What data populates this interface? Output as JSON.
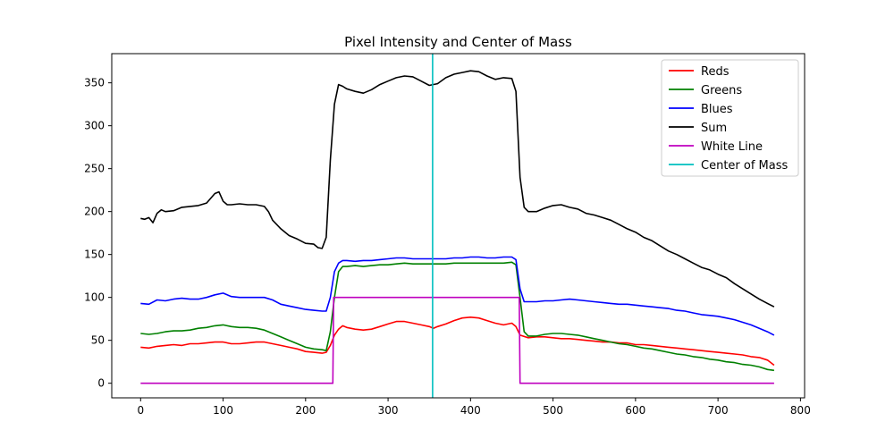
{
  "chart_data": {
    "type": "line",
    "title": "Pixel Intensity and Center of Mass",
    "xlabel": "",
    "ylabel": "",
    "xlim": [
      -35,
      805
    ],
    "ylim": [
      -17,
      384
    ],
    "x_ticks": [
      0,
      100,
      200,
      300,
      400,
      500,
      600,
      700,
      800
    ],
    "y_ticks": [
      0,
      50,
      100,
      150,
      200,
      250,
      300,
      350
    ],
    "grid": false,
    "legend_position": "upper right",
    "series": [
      {
        "name": "Reds",
        "color": "#ff0000",
        "x": [
          0,
          10,
          20,
          30,
          40,
          50,
          60,
          70,
          80,
          90,
          100,
          110,
          120,
          130,
          140,
          150,
          160,
          170,
          180,
          190,
          200,
          210,
          220,
          225,
          230,
          235,
          240,
          245,
          250,
          260,
          270,
          280,
          290,
          300,
          310,
          320,
          330,
          340,
          350,
          355,
          360,
          370,
          380,
          390,
          400,
          410,
          420,
          430,
          440,
          450,
          455,
          460,
          470,
          480,
          490,
          500,
          510,
          520,
          530,
          540,
          550,
          560,
          570,
          580,
          590,
          600,
          610,
          620,
          630,
          640,
          650,
          660,
          670,
          680,
          690,
          700,
          710,
          720,
          730,
          740,
          750,
          760,
          768
        ],
        "y": [
          42,
          41,
          43,
          44,
          45,
          44,
          46,
          46,
          47,
          48,
          48,
          46,
          46,
          47,
          48,
          48,
          46,
          44,
          42,
          40,
          37,
          36,
          35,
          36,
          44,
          56,
          63,
          67,
          65,
          63,
          62,
          63,
          66,
          69,
          72,
          72,
          70,
          68,
          66,
          64,
          66,
          69,
          73,
          76,
          77,
          76,
          73,
          70,
          68,
          70,
          66,
          56,
          53,
          54,
          54,
          53,
          52,
          52,
          51,
          50,
          49,
          48,
          48,
          47,
          47,
          45,
          45,
          44,
          43,
          42,
          41,
          40,
          39,
          38,
          37,
          36,
          35,
          34,
          33,
          31,
          30,
          27,
          21
        ]
      },
      {
        "name": "Greens",
        "color": "#008000",
        "x": [
          0,
          10,
          20,
          30,
          40,
          50,
          60,
          70,
          80,
          90,
          100,
          110,
          120,
          130,
          140,
          150,
          160,
          170,
          180,
          190,
          200,
          210,
          220,
          225,
          230,
          235,
          240,
          245,
          250,
          260,
          270,
          280,
          290,
          300,
          310,
          320,
          330,
          340,
          350,
          360,
          370,
          380,
          390,
          400,
          410,
          420,
          430,
          440,
          450,
          455,
          460,
          465,
          470,
          480,
          490,
          500,
          510,
          520,
          530,
          540,
          550,
          560,
          570,
          580,
          590,
          600,
          610,
          620,
          630,
          640,
          650,
          660,
          670,
          680,
          690,
          700,
          710,
          720,
          730,
          740,
          750,
          760,
          768
        ],
        "y": [
          58,
          57,
          58,
          60,
          61,
          61,
          62,
          64,
          65,
          67,
          68,
          66,
          65,
          65,
          64,
          62,
          58,
          54,
          50,
          46,
          42,
          40,
          39,
          38,
          60,
          100,
          130,
          136,
          136,
          137,
          136,
          137,
          138,
          138,
          139,
          140,
          139,
          139,
          139,
          139,
          139,
          140,
          140,
          140,
          140,
          140,
          140,
          140,
          141,
          138,
          100,
          60,
          55,
          55,
          57,
          58,
          58,
          57,
          56,
          54,
          52,
          50,
          48,
          46,
          45,
          43,
          41,
          40,
          38,
          36,
          34,
          33,
          31,
          30,
          28,
          27,
          25,
          24,
          22,
          21,
          19,
          16,
          15
        ]
      },
      {
        "name": "Blues",
        "color": "#0000ff",
        "x": [
          0,
          10,
          20,
          30,
          40,
          50,
          60,
          70,
          80,
          90,
          100,
          110,
          120,
          130,
          140,
          150,
          160,
          170,
          180,
          190,
          200,
          210,
          220,
          225,
          230,
          235,
          240,
          245,
          250,
          260,
          270,
          280,
          290,
          300,
          310,
          320,
          330,
          340,
          350,
          360,
          370,
          380,
          390,
          400,
          410,
          420,
          430,
          440,
          450,
          455,
          460,
          465,
          470,
          480,
          490,
          500,
          510,
          520,
          530,
          540,
          550,
          560,
          570,
          580,
          590,
          600,
          610,
          620,
          630,
          640,
          650,
          660,
          670,
          680,
          690,
          700,
          710,
          720,
          730,
          740,
          750,
          760,
          768
        ],
        "y": [
          93,
          92,
          97,
          96,
          98,
          99,
          98,
          98,
          100,
          103,
          105,
          101,
          100,
          100,
          100,
          100,
          97,
          92,
          90,
          88,
          86,
          85,
          84,
          84,
          100,
          130,
          140,
          143,
          143,
          142,
          143,
          143,
          144,
          145,
          146,
          146,
          145,
          145,
          145,
          145,
          145,
          146,
          146,
          147,
          147,
          146,
          146,
          147,
          147,
          144,
          110,
          95,
          95,
          95,
          96,
          96,
          97,
          98,
          97,
          96,
          95,
          94,
          93,
          92,
          92,
          91,
          90,
          89,
          88,
          87,
          85,
          84,
          82,
          80,
          79,
          78,
          76,
          74,
          71,
          68,
          64,
          60,
          56
        ]
      },
      {
        "name": "Sum",
        "color": "#000000",
        "x": [
          0,
          5,
          10,
          15,
          20,
          25,
          30,
          40,
          50,
          60,
          70,
          80,
          90,
          95,
          100,
          105,
          110,
          120,
          130,
          140,
          150,
          155,
          160,
          170,
          180,
          190,
          200,
          210,
          215,
          220,
          225,
          230,
          235,
          240,
          245,
          250,
          260,
          270,
          280,
          290,
          300,
          310,
          320,
          330,
          340,
          350,
          360,
          370,
          380,
          390,
          400,
          410,
          420,
          430,
          440,
          450,
          455,
          460,
          465,
          470,
          480,
          490,
          500,
          510,
          520,
          530,
          540,
          550,
          560,
          570,
          580,
          590,
          600,
          610,
          620,
          630,
          640,
          650,
          660,
          670,
          680,
          690,
          700,
          710,
          720,
          730,
          740,
          750,
          760,
          768
        ],
        "y": [
          192,
          191,
          193,
          187,
          198,
          202,
          200,
          201,
          205,
          206,
          207,
          210,
          221,
          223,
          212,
          208,
          208,
          209,
          208,
          208,
          206,
          200,
          190,
          180,
          172,
          168,
          163,
          162,
          158,
          157,
          170,
          260,
          325,
          348,
          346,
          343,
          340,
          338,
          342,
          348,
          352,
          356,
          358,
          357,
          352,
          347,
          349,
          356,
          360,
          362,
          364,
          363,
          358,
          354,
          356,
          355,
          340,
          240,
          205,
          200,
          200,
          204,
          207,
          208,
          205,
          203,
          198,
          196,
          193,
          190,
          185,
          180,
          176,
          170,
          166,
          160,
          154,
          150,
          145,
          140,
          135,
          132,
          127,
          123,
          116,
          110,
          104,
          98,
          93,
          89
        ]
      },
      {
        "name": "White Line",
        "color": "#bf00bf",
        "x": [
          0,
          233,
          234,
          459,
          460,
          768
        ],
        "y": [
          0,
          0,
          100,
          100,
          0,
          0
        ]
      },
      {
        "name": "Center of Mass",
        "color": "#00bfbf",
        "x": [
          354,
          354
        ],
        "y": [
          -17,
          384
        ],
        "style": "vertical-line"
      }
    ]
  }
}
